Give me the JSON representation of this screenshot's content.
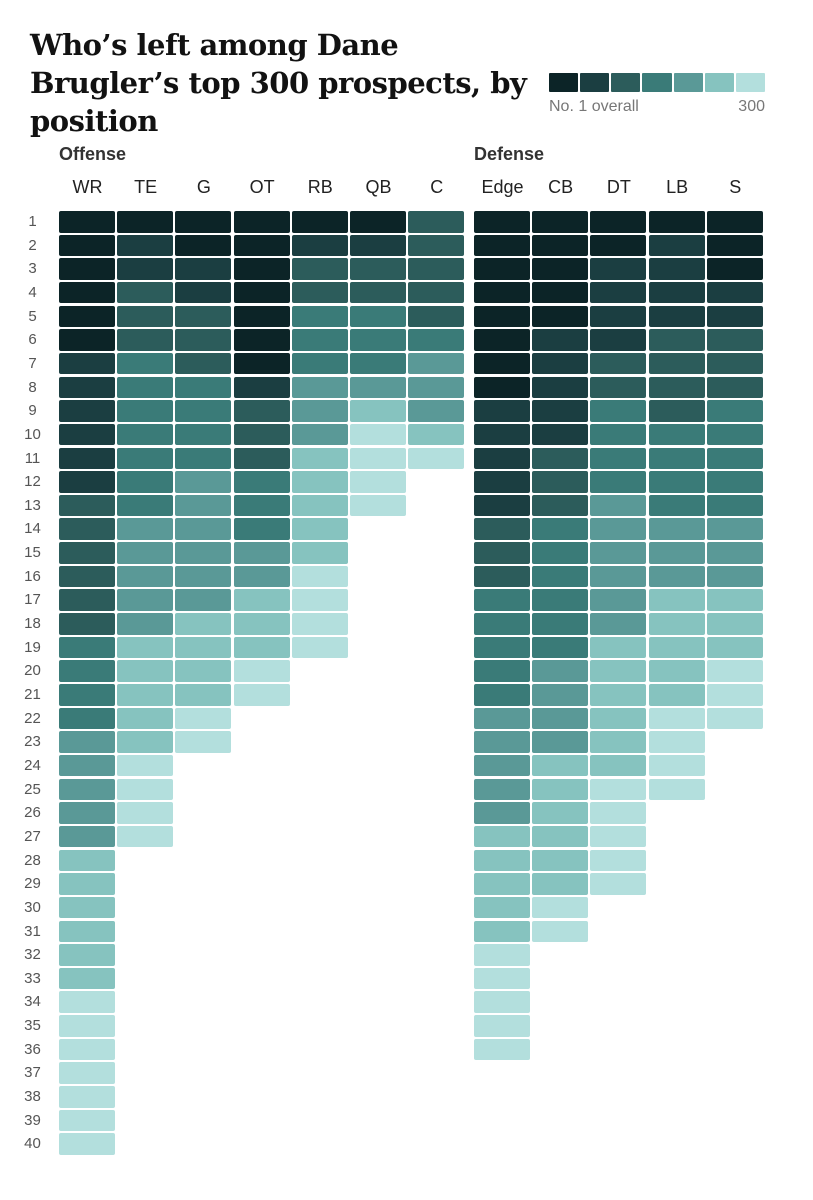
{
  "title": "Who’s left among Dane Brugler’s top 300 prospects, by position",
  "legend": {
    "colors": [
      "#0c2427",
      "#1b3e41",
      "#2c5c5b",
      "#3a7b78",
      "#5a9997",
      "#86c3bf",
      "#b3dfdd"
    ],
    "min_label": "No. 1 overall",
    "max_label": "300"
  },
  "chart_data": {
    "type": "heatmap",
    "title": "Who’s left among Dane Brugler’s top 300 prospects, by position",
    "value_scale": "prospect rank tier, 0 = No. 1 overall (darkest) to 6 = 300 (lightest)",
    "row_labels": [
      "1",
      "2",
      "3",
      "4",
      "5",
      "6",
      "7",
      "8",
      "9",
      "10",
      "11",
      "12",
      "13",
      "14",
      "15",
      "16",
      "17",
      "18",
      "19",
      "20",
      "21",
      "22",
      "23",
      "24",
      "25",
      "26",
      "27",
      "28",
      "29",
      "30",
      "31",
      "32",
      "33",
      "34",
      "35",
      "36",
      "37",
      "38",
      "39",
      "40"
    ],
    "groups": [
      {
        "name": "Offense",
        "positions": [
          {
            "name": "WR",
            "tiers": [
              0,
              0,
              0,
              0,
              0,
              0,
              1,
              1,
              1,
              1,
              1,
              1,
              2,
              2,
              2,
              2,
              2,
              2,
              3,
              3,
              3,
              3,
              4,
              4,
              4,
              4,
              4,
              5,
              5,
              5,
              5,
              5,
              5,
              6,
              6,
              6,
              6,
              6,
              6,
              6
            ]
          },
          {
            "name": "TE",
            "tiers": [
              0,
              1,
              1,
              2,
              2,
              2,
              3,
              3,
              3,
              3,
              3,
              3,
              3,
              4,
              4,
              4,
              4,
              4,
              5,
              5,
              5,
              5,
              5,
              6,
              6,
              6,
              6
            ]
          },
          {
            "name": "G",
            "tiers": [
              0,
              0,
              1,
              1,
              2,
              2,
              2,
              3,
              3,
              3,
              3,
              4,
              4,
              4,
              4,
              4,
              4,
              5,
              5,
              5,
              5,
              6,
              6
            ]
          },
          {
            "name": "OT",
            "tiers": [
              0,
              0,
              0,
              0,
              0,
              0,
              0,
              1,
              2,
              2,
              2,
              3,
              3,
              3,
              4,
              4,
              5,
              5,
              5,
              6,
              6
            ]
          },
          {
            "name": "RB",
            "tiers": [
              0,
              1,
              2,
              2,
              3,
              3,
              3,
              4,
              4,
              4,
              5,
              5,
              5,
              5,
              5,
              6,
              6,
              6,
              6
            ]
          },
          {
            "name": "QB",
            "tiers": [
              0,
              1,
              2,
              2,
              3,
              3,
              3,
              4,
              5,
              6,
              6,
              6,
              6
            ]
          },
          {
            "name": "C",
            "tiers": [
              2,
              2,
              2,
              2,
              2,
              3,
              4,
              4,
              4,
              5,
              6
            ]
          }
        ]
      },
      {
        "name": "Defense",
        "positions": [
          {
            "name": "Edge",
            "tiers": [
              0,
              0,
              0,
              0,
              0,
              0,
              0,
              0,
              1,
              1,
              1,
              1,
              1,
              2,
              2,
              2,
              3,
              3,
              3,
              3,
              3,
              4,
              4,
              4,
              4,
              4,
              5,
              5,
              5,
              5,
              5,
              6,
              6,
              6,
              6,
              6
            ]
          },
          {
            "name": "CB",
            "tiers": [
              0,
              0,
              0,
              0,
              0,
              1,
              1,
              1,
              1,
              1,
              2,
              2,
              2,
              3,
              3,
              3,
              3,
              3,
              3,
              4,
              4,
              4,
              4,
              5,
              5,
              5,
              5,
              5,
              5,
              6,
              6
            ]
          },
          {
            "name": "DT",
            "tiers": [
              0,
              0,
              1,
              1,
              1,
              1,
              2,
              2,
              3,
              3,
              3,
              3,
              4,
              4,
              4,
              4,
              4,
              4,
              5,
              5,
              5,
              5,
              5,
              5,
              6,
              6,
              6,
              6,
              6
            ]
          },
          {
            "name": "LB",
            "tiers": [
              0,
              1,
              1,
              1,
              1,
              2,
              2,
              2,
              2,
              3,
              3,
              3,
              3,
              4,
              4,
              4,
              5,
              5,
              5,
              5,
              5,
              6,
              6,
              6,
              6
            ]
          },
          {
            "name": "S",
            "tiers": [
              0,
              0,
              0,
              1,
              1,
              2,
              2,
              2,
              3,
              3,
              3,
              3,
              3,
              4,
              4,
              4,
              5,
              5,
              5,
              6,
              6,
              6
            ]
          }
        ]
      }
    ]
  }
}
